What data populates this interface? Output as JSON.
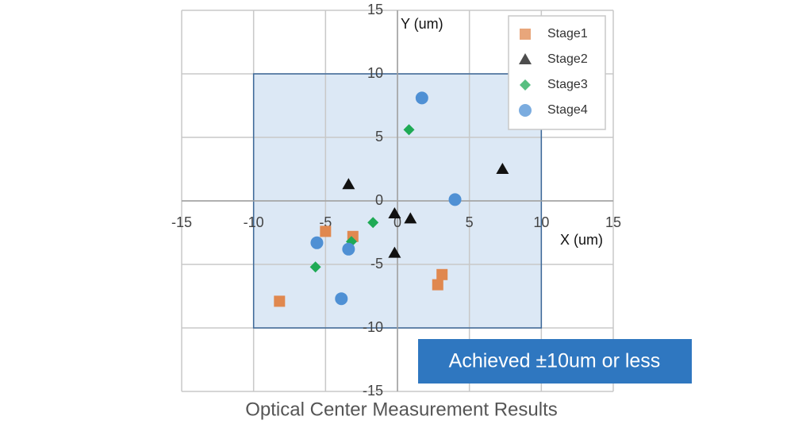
{
  "chart_data": {
    "type": "scatter",
    "title": "Optical Center Measurement Results",
    "x_label": "X (um)",
    "y_label": "Y (um)",
    "annotation": "Achieved ±10um or less",
    "xlim": [
      -15,
      15
    ],
    "ylim": [
      -15,
      15
    ],
    "xticks": [
      -15,
      -10,
      -5,
      0,
      5,
      10,
      15
    ],
    "yticks": [
      -15,
      -10,
      -5,
      0,
      5,
      10,
      15
    ],
    "grid": true,
    "legend": "upper right",
    "shaded_region": {
      "x": [
        -10,
        10
      ],
      "y": [
        -10,
        10
      ],
      "color": "#dce8f5",
      "edge_color": "#3c6898"
    },
    "series": [
      {
        "name": "Stage1",
        "color": "#e0884f",
        "marker": "square",
        "x": [
          -8.2,
          -5.0,
          -3.1,
          2.8,
          3.1
        ],
        "y": [
          -7.9,
          -2.4,
          -2.8,
          -6.6,
          -5.8
        ]
      },
      {
        "name": "Stage2",
        "color": "#111111",
        "marker": "triangle",
        "x": [
          -3.4,
          -0.2,
          0.9,
          -0.2,
          7.3
        ],
        "y": [
          1.3,
          -1.0,
          -1.4,
          -4.1,
          2.5
        ]
      },
      {
        "name": "Stage3",
        "color": "#1faa55",
        "marker": "diamond",
        "x": [
          0.8,
          -1.7,
          -3.2,
          -5.7
        ],
        "y": [
          5.6,
          -1.7,
          -3.2,
          -5.2
        ]
      },
      {
        "name": "Stage4",
        "color": "#4f90d4",
        "marker": "circle",
        "x": [
          1.7,
          4.0,
          -5.6,
          -3.4,
          -3.9
        ],
        "y": [
          8.1,
          0.1,
          -3.3,
          -3.8,
          -7.7
        ]
      }
    ]
  }
}
